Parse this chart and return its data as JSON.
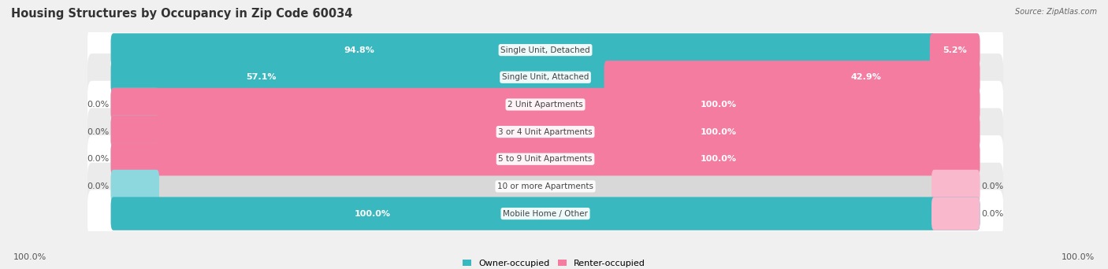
{
  "title": "Housing Structures by Occupancy in Zip Code 60034",
  "source": "Source: ZipAtlas.com",
  "categories": [
    "Single Unit, Detached",
    "Single Unit, Attached",
    "2 Unit Apartments",
    "3 or 4 Unit Apartments",
    "5 to 9 Unit Apartments",
    "10 or more Apartments",
    "Mobile Home / Other"
  ],
  "owner_pct": [
    94.8,
    57.1,
    0.0,
    0.0,
    0.0,
    0.0,
    100.0
  ],
  "renter_pct": [
    5.2,
    42.9,
    100.0,
    100.0,
    100.0,
    0.0,
    0.0
  ],
  "owner_color": "#3ab8c0",
  "renter_color": "#f47ca0",
  "owner_stub_color": "#8dd8de",
  "renter_stub_color": "#f9b8cc",
  "row_colors": [
    "#ffffff",
    "#ebebeb",
    "#ffffff",
    "#ebebeb",
    "#ffffff",
    "#ebebeb",
    "#ffffff"
  ],
  "bg_color": "#f0f0f0",
  "title_fontsize": 10.5,
  "label_fontsize": 8,
  "cat_fontsize": 7.5,
  "bar_height": 0.62,
  "legend_owner": "Owner-occupied",
  "legend_renter": "Renter-occupied"
}
